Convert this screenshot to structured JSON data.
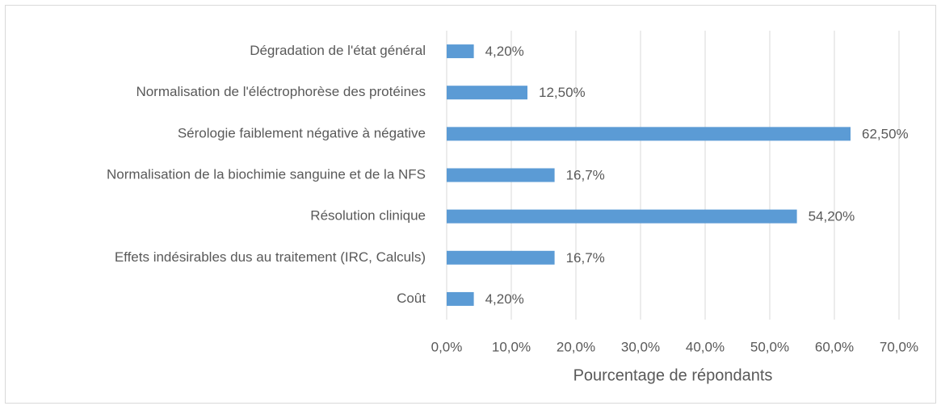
{
  "chart_data": {
    "type": "bar",
    "orientation": "horizontal",
    "categories": [
      "Dégradation de l'état général",
      "Normalisation de l'éléctrophorèse des protéines",
      "Sérologie faiblement négative à négative",
      "Normalisation de la biochimie sanguine et de la NFS",
      "Résolution clinique",
      "Effets indésirables dus au traitement (IRC, Calculs)",
      "Coût"
    ],
    "values": [
      4.2,
      12.5,
      62.5,
      16.7,
      54.2,
      16.7,
      4.2
    ],
    "value_labels": [
      "4,20%",
      "12,50%",
      "62,50%",
      "16,7%",
      "54,20%",
      "16,7%",
      "4,20%"
    ],
    "color": "#5b9bd5",
    "xlabel": "Pourcentage de répondants",
    "xlim": [
      0,
      70
    ],
    "xticks": [
      {
        "value": 0,
        "label": "0,0%"
      },
      {
        "value": 10,
        "label": "10,0%"
      },
      {
        "value": 20,
        "label": "20,0%"
      },
      {
        "value": 30,
        "label": "30,0%"
      },
      {
        "value": 40,
        "label": "40,0%"
      },
      {
        "value": 50,
        "label": "50,0%"
      },
      {
        "value": 60,
        "label": "60,0%"
      },
      {
        "value": 70,
        "label": "70,0%"
      }
    ],
    "grid": true
  }
}
